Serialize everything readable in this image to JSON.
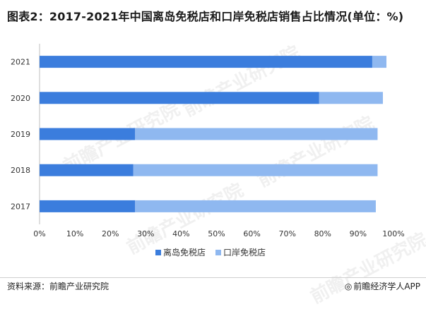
{
  "title": "图表2：2017-2021年中国离岛免税店和口岸免税店销售占比情况(单位：%)",
  "source": "资料来源：前瞻产业研究院",
  "brand": "前瞻经济学人APP",
  "brand_icon": "wechat-icon",
  "watermark_text": "前瞻产业研究院",
  "colors": {
    "offshore": "#3b7ddd",
    "port": "#8fb8f0",
    "axis": "#bfbfbf",
    "text": "#333333"
  },
  "chart_data": {
    "type": "bar",
    "orientation": "horizontal",
    "stacked": true,
    "categories": [
      "2021",
      "2020",
      "2019",
      "2018",
      "2017"
    ],
    "series": [
      {
        "name": "离岛免税店",
        "values": [
          94,
          79,
          27,
          26.5,
          27
        ]
      },
      {
        "name": "口岸免税店",
        "values": [
          4,
          18,
          68.5,
          69,
          68
        ]
      }
    ],
    "xlim": [
      0,
      100
    ],
    "xticks": [
      "0%",
      "10%",
      "20%",
      "30%",
      "40%",
      "50%",
      "60%",
      "70%",
      "80%",
      "90%",
      "100%"
    ],
    "legend_position": "bottom",
    "grid": false
  }
}
